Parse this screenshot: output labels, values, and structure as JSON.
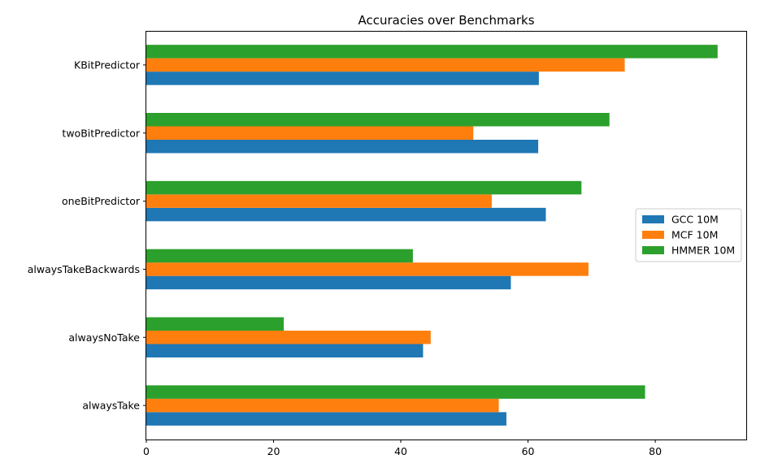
{
  "chart_data": {
    "type": "bar",
    "orientation": "horizontal",
    "title": "Accuracies over Benchmarks",
    "xlabel": "",
    "ylabel": "",
    "categories": [
      "alwaysTake",
      "alwaysNoTake",
      "alwaysTakeBackwards",
      "oneBitPredictor",
      "twoBitPredictor",
      "KBitPredictor"
    ],
    "series": [
      {
        "name": "GCC 10M",
        "color": "#1f77b4",
        "values": [
          56.6,
          43.5,
          57.3,
          62.8,
          61.6,
          61.7
        ]
      },
      {
        "name": "MCF 10M",
        "color": "#ff7f0e",
        "values": [
          55.4,
          44.7,
          69.5,
          54.3,
          51.4,
          75.2
        ]
      },
      {
        "name": "HMMER 10M",
        "color": "#2ca02c",
        "values": [
          78.4,
          21.6,
          41.9,
          68.4,
          72.8,
          89.8
        ]
      }
    ],
    "xlim": [
      0,
      94.3
    ],
    "xticks": [
      "0",
      "20",
      "40",
      "60",
      "80"
    ],
    "legend_position": "center-right",
    "grid": false
  }
}
